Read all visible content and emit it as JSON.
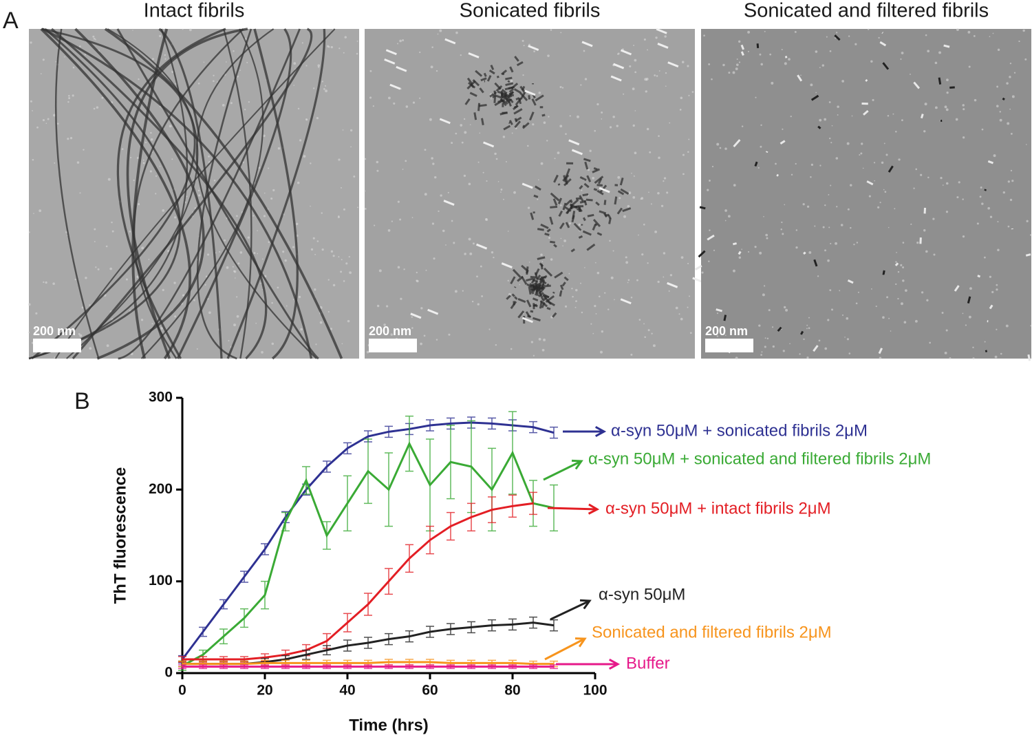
{
  "panel_a": {
    "label": "A",
    "images": [
      {
        "title": "Intact fibrils",
        "scale_bar": "200 nm"
      },
      {
        "title": "Sonicated fibrils",
        "scale_bar": "200 nm"
      },
      {
        "title": "Sonicated and filtered fibrils",
        "scale_bar": "200 nm"
      }
    ]
  },
  "chart_data": {
    "type": "line",
    "panel_label": "B",
    "xlabel": "Time (hrs)",
    "ylabel": "ThT fluorescence",
    "xlim": [
      0,
      100
    ],
    "ylim": [
      0,
      300
    ],
    "xticks": [
      0,
      20,
      40,
      60,
      80,
      100
    ],
    "yticks": [
      0,
      100,
      200,
      300
    ],
    "x": [
      0,
      5,
      10,
      15,
      20,
      25,
      30,
      35,
      40,
      45,
      50,
      55,
      60,
      65,
      70,
      75,
      80,
      85,
      90
    ],
    "series": [
      {
        "name": "α-syn 50μM + sonicated fibrils 2μM",
        "color": "#2e3192",
        "values": [
          15,
          45,
          75,
          105,
          135,
          170,
          200,
          225,
          245,
          258,
          263,
          266,
          270,
          272,
          273,
          272,
          270,
          268,
          262
        ],
        "errors": [
          4,
          5,
          5,
          6,
          6,
          6,
          6,
          6,
          6,
          6,
          6,
          6,
          6,
          6,
          6,
          6,
          6,
          6,
          6
        ]
      },
      {
        "name": "α-syn 50μM + sonicated and filtered fibrils 2μM",
        "color": "#3aaa35",
        "values": [
          8,
          20,
          40,
          60,
          85,
          165,
          210,
          150,
          185,
          220,
          200,
          250,
          205,
          230,
          225,
          200,
          240,
          185,
          180
        ],
        "errors": [
          5,
          5,
          8,
          10,
          15,
          10,
          15,
          15,
          30,
          35,
          40,
          30,
          50,
          40,
          50,
          45,
          45,
          25,
          25
        ]
      },
      {
        "name": "α-syn 50μM + intact fibrils 2μM",
        "color": "#e31e24",
        "values": [
          15,
          15,
          15,
          15,
          17,
          20,
          25,
          35,
          55,
          75,
          100,
          125,
          145,
          160,
          170,
          178,
          182,
          185,
          null
        ],
        "errors": [
          3,
          3,
          3,
          3,
          4,
          5,
          6,
          8,
          10,
          12,
          14,
          15,
          15,
          15,
          15,
          14,
          12,
          12,
          null
        ]
      },
      {
        "name": "α-syn 50μM",
        "color": "#222222",
        "values": [
          10,
          10,
          10,
          10,
          12,
          15,
          20,
          25,
          30,
          33,
          37,
          40,
          45,
          48,
          50,
          52,
          53,
          55,
          52
        ],
        "errors": [
          3,
          3,
          3,
          3,
          4,
          4,
          5,
          5,
          6,
          6,
          6,
          6,
          6,
          6,
          6,
          6,
          6,
          6,
          6
        ]
      },
      {
        "name": "Sonicated and filtered fibrils 2μM",
        "color": "#f7941d",
        "values": [
          10,
          10,
          10,
          10,
          11,
          11,
          11,
          11,
          11,
          11,
          12,
          12,
          12,
          11,
          11,
          11,
          11,
          10,
          10
        ],
        "errors": [
          3,
          3,
          3,
          3,
          3,
          3,
          3,
          3,
          3,
          3,
          3,
          3,
          3,
          3,
          3,
          3,
          3,
          3,
          3
        ]
      },
      {
        "name": "Buffer",
        "color": "#e6198a",
        "values": [
          7,
          7,
          7,
          7,
          7,
          7,
          7,
          7,
          7,
          7,
          7,
          7,
          7,
          7,
          7,
          7,
          7,
          7,
          7
        ],
        "errors": [
          2,
          2,
          2,
          2,
          2,
          2,
          2,
          2,
          2,
          2,
          2,
          2,
          2,
          2,
          2,
          2,
          2,
          2,
          2
        ]
      }
    ]
  }
}
